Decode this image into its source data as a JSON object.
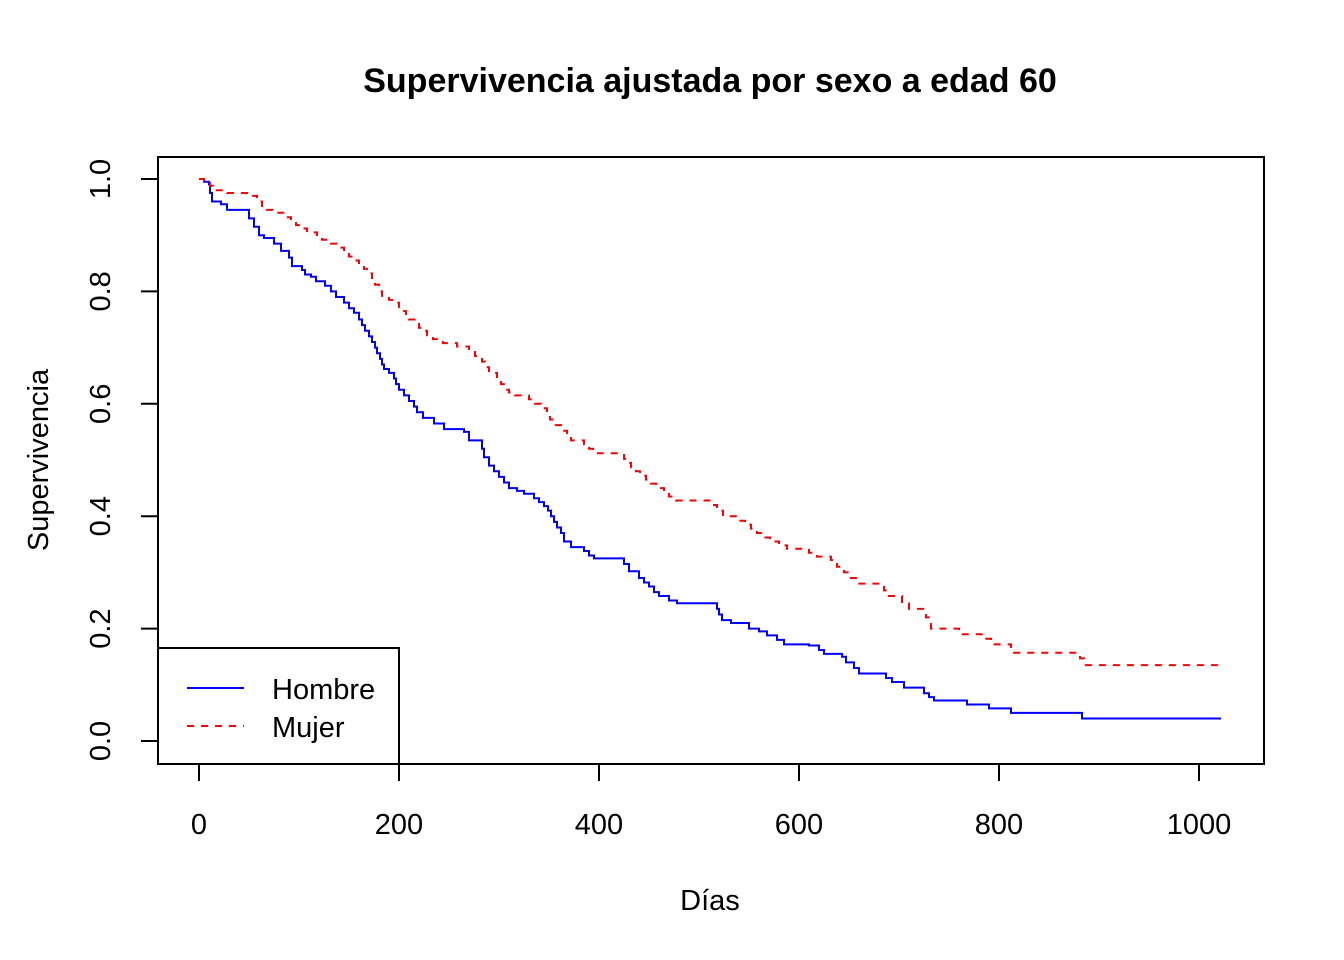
{
  "chart_data": {
    "type": "line",
    "title": "Supervivencia ajustada por sexo a edad 60",
    "xlabel": "Días",
    "ylabel": "Supervivencia",
    "xlim": [
      0,
      1022
    ],
    "ylim": [
      0,
      1
    ],
    "x_ticks": [
      "0",
      "200",
      "400",
      "600",
      "800",
      "1000"
    ],
    "y_ticks": [
      "0.0",
      "0.2",
      "0.4",
      "0.6",
      "0.8",
      "1.0"
    ],
    "grid": false,
    "legend": {
      "position": "bottom-left"
    },
    "step": true,
    "series": [
      {
        "name": "Hombre",
        "color": "#0000ff",
        "dash": "solid",
        "points": [
          [
            0,
            1.0
          ],
          [
            5,
            0.995
          ],
          [
            10,
            0.99
          ],
          [
            11,
            0.975
          ],
          [
            13,
            0.96
          ],
          [
            22,
            0.955
          ],
          [
            28,
            0.945
          ],
          [
            50,
            0.93
          ],
          [
            55,
            0.915
          ],
          [
            60,
            0.9
          ],
          [
            65,
            0.895
          ],
          [
            75,
            0.885
          ],
          [
            82,
            0.872
          ],
          [
            90,
            0.86
          ],
          [
            93,
            0.845
          ],
          [
            103,
            0.838
          ],
          [
            106,
            0.83
          ],
          [
            112,
            0.826
          ],
          [
            117,
            0.818
          ],
          [
            126,
            0.81
          ],
          [
            132,
            0.8
          ],
          [
            137,
            0.79
          ],
          [
            145,
            0.78
          ],
          [
            150,
            0.77
          ],
          [
            155,
            0.762
          ],
          [
            160,
            0.75
          ],
          [
            163,
            0.74
          ],
          [
            166,
            0.73
          ],
          [
            170,
            0.72
          ],
          [
            173,
            0.71
          ],
          [
            176,
            0.7
          ],
          [
            178,
            0.69
          ],
          [
            181,
            0.68
          ],
          [
            183,
            0.67
          ],
          [
            185,
            0.662
          ],
          [
            190,
            0.655
          ],
          [
            195,
            0.645
          ],
          [
            197,
            0.635
          ],
          [
            200,
            0.625
          ],
          [
            205,
            0.615
          ],
          [
            210,
            0.605
          ],
          [
            215,
            0.595
          ],
          [
            218,
            0.585
          ],
          [
            224,
            0.575
          ],
          [
            235,
            0.565
          ],
          [
            245,
            0.555
          ],
          [
            265,
            0.55
          ],
          [
            270,
            0.535
          ],
          [
            283,
            0.52
          ],
          [
            285,
            0.505
          ],
          [
            290,
            0.49
          ],
          [
            295,
            0.48
          ],
          [
            300,
            0.47
          ],
          [
            305,
            0.46
          ],
          [
            310,
            0.45
          ],
          [
            318,
            0.445
          ],
          [
            325,
            0.44
          ],
          [
            335,
            0.432
          ],
          [
            340,
            0.425
          ],
          [
            345,
            0.418
          ],
          [
            349,
            0.41
          ],
          [
            352,
            0.4
          ],
          [
            355,
            0.39
          ],
          [
            358,
            0.38
          ],
          [
            362,
            0.37
          ],
          [
            365,
            0.355
          ],
          [
            372,
            0.345
          ],
          [
            385,
            0.338
          ],
          [
            390,
            0.33
          ],
          [
            395,
            0.325
          ],
          [
            425,
            0.315
          ],
          [
            430,
            0.302
          ],
          [
            440,
            0.29
          ],
          [
            445,
            0.282
          ],
          [
            450,
            0.275
          ],
          [
            455,
            0.265
          ],
          [
            460,
            0.258
          ],
          [
            470,
            0.25
          ],
          [
            478,
            0.245
          ],
          [
            518,
            0.235
          ],
          [
            520,
            0.225
          ],
          [
            523,
            0.215
          ],
          [
            532,
            0.21
          ],
          [
            550,
            0.2
          ],
          [
            560,
            0.195
          ],
          [
            568,
            0.188
          ],
          [
            578,
            0.18
          ],
          [
            585,
            0.172
          ],
          [
            610,
            0.17
          ],
          [
            620,
            0.162
          ],
          [
            625,
            0.155
          ],
          [
            643,
            0.15
          ],
          [
            647,
            0.14
          ],
          [
            655,
            0.13
          ],
          [
            660,
            0.12
          ],
          [
            687,
            0.112
          ],
          [
            693,
            0.105
          ],
          [
            705,
            0.095
          ],
          [
            725,
            0.085
          ],
          [
            730,
            0.078
          ],
          [
            735,
            0.072
          ],
          [
            768,
            0.065
          ],
          [
            790,
            0.058
          ],
          [
            812,
            0.05
          ],
          [
            883,
            0.04
          ],
          [
            1022,
            0.04
          ]
        ]
      },
      {
        "name": "Mujer",
        "color": "#ff0000",
        "dash": "dashed",
        "points": [
          [
            0,
            1.0
          ],
          [
            5,
            0.997
          ],
          [
            11,
            0.988
          ],
          [
            14,
            0.98
          ],
          [
            28,
            0.975
          ],
          [
            48,
            0.97
          ],
          [
            58,
            0.96
          ],
          [
            63,
            0.952
          ],
          [
            66,
            0.945
          ],
          [
            78,
            0.94
          ],
          [
            86,
            0.932
          ],
          [
            92,
            0.925
          ],
          [
            97,
            0.918
          ],
          [
            103,
            0.912
          ],
          [
            108,
            0.905
          ],
          [
            118,
            0.898
          ],
          [
            123,
            0.892
          ],
          [
            132,
            0.885
          ],
          [
            140,
            0.878
          ],
          [
            145,
            0.87
          ],
          [
            150,
            0.862
          ],
          [
            155,
            0.855
          ],
          [
            160,
            0.848
          ],
          [
            165,
            0.84
          ],
          [
            170,
            0.832
          ],
          [
            173,
            0.822
          ],
          [
            176,
            0.812
          ],
          [
            180,
            0.8
          ],
          [
            183,
            0.792
          ],
          [
            190,
            0.785
          ],
          [
            195,
            0.78
          ],
          [
            200,
            0.772
          ],
          [
            203,
            0.765
          ],
          [
            207,
            0.758
          ],
          [
            210,
            0.75
          ],
          [
            217,
            0.742
          ],
          [
            220,
            0.735
          ],
          [
            224,
            0.73
          ],
          [
            228,
            0.722
          ],
          [
            234,
            0.715
          ],
          [
            244,
            0.708
          ],
          [
            258,
            0.702
          ],
          [
            270,
            0.695
          ],
          [
            276,
            0.685
          ],
          [
            283,
            0.675
          ],
          [
            286,
            0.665
          ],
          [
            290,
            0.655
          ],
          [
            298,
            0.645
          ],
          [
            302,
            0.635
          ],
          [
            306,
            0.625
          ],
          [
            310,
            0.62
          ],
          [
            316,
            0.615
          ],
          [
            330,
            0.608
          ],
          [
            336,
            0.6
          ],
          [
            342,
            0.592
          ],
          [
            348,
            0.582
          ],
          [
            351,
            0.572
          ],
          [
            355,
            0.562
          ],
          [
            362,
            0.552
          ],
          [
            368,
            0.542
          ],
          [
            372,
            0.535
          ],
          [
            385,
            0.528
          ],
          [
            390,
            0.52
          ],
          [
            394,
            0.512
          ],
          [
            425,
            0.502
          ],
          [
            428,
            0.495
          ],
          [
            432,
            0.487
          ],
          [
            437,
            0.48
          ],
          [
            441,
            0.472
          ],
          [
            447,
            0.465
          ],
          [
            452,
            0.458
          ],
          [
            457,
            0.45
          ],
          [
            465,
            0.442
          ],
          [
            470,
            0.435
          ],
          [
            477,
            0.428
          ],
          [
            515,
            0.42
          ],
          [
            518,
            0.41
          ],
          [
            524,
            0.4
          ],
          [
            538,
            0.392
          ],
          [
            546,
            0.385
          ],
          [
            552,
            0.378
          ],
          [
            558,
            0.37
          ],
          [
            563,
            0.362
          ],
          [
            571,
            0.355
          ],
          [
            580,
            0.348
          ],
          [
            588,
            0.342
          ],
          [
            610,
            0.335
          ],
          [
            618,
            0.328
          ],
          [
            632,
            0.322
          ],
          [
            638,
            0.31
          ],
          [
            645,
            0.3
          ],
          [
            650,
            0.29
          ],
          [
            658,
            0.28
          ],
          [
            685,
            0.268
          ],
          [
            690,
            0.258
          ],
          [
            703,
            0.245
          ],
          [
            710,
            0.235
          ],
          [
            727,
            0.22
          ],
          [
            732,
            0.2
          ],
          [
            760,
            0.19
          ],
          [
            785,
            0.182
          ],
          [
            792,
            0.172
          ],
          [
            812,
            0.162
          ],
          [
            815,
            0.157
          ],
          [
            881,
            0.147
          ],
          [
            885,
            0.135
          ],
          [
            1022,
            0.135
          ]
        ]
      }
    ]
  }
}
